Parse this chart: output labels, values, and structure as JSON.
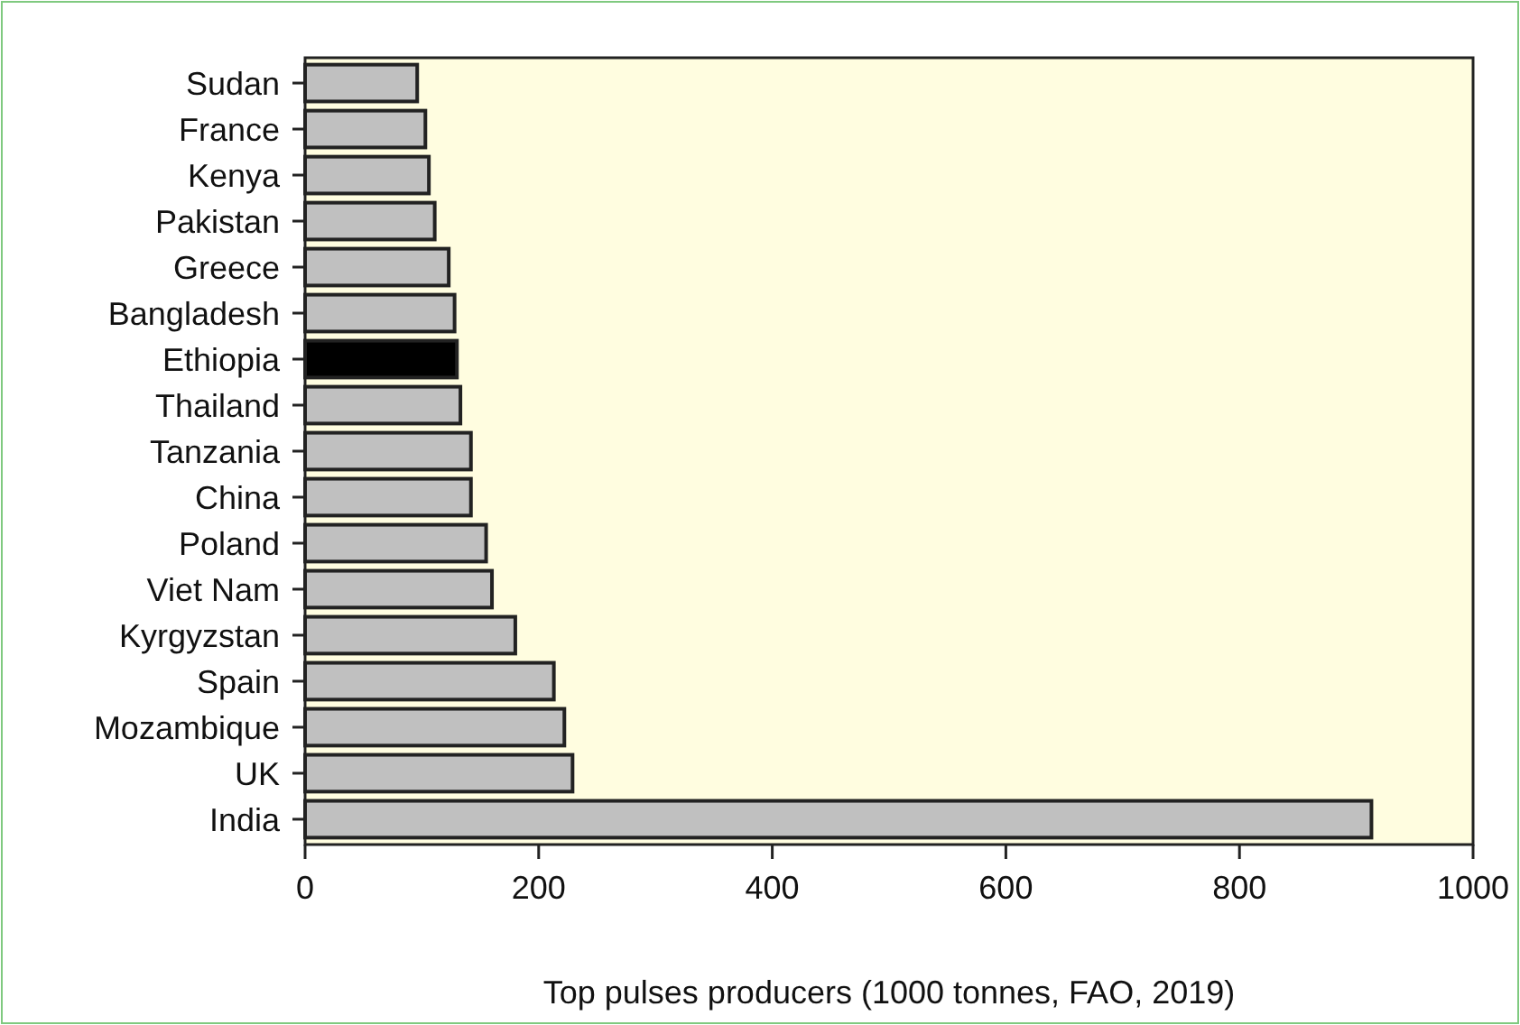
{
  "chart_data": {
    "type": "bar",
    "orientation": "horizontal",
    "xlabel": "Top pulses producers (1000 tonnes, FAO, 2019)",
    "categories": [
      "Sudan",
      "France",
      "Kenya",
      "Pakistan",
      "Greece",
      "Bangladesh",
      "Ethiopia",
      "Thailand",
      "Tanzania",
      "China",
      "Poland",
      "Viet Nam",
      "Kyrgyzstan",
      "Spain",
      "Mozambique",
      "UK",
      "India"
    ],
    "values": [
      96,
      103,
      106,
      111,
      123,
      128,
      130,
      133,
      142,
      142,
      155,
      160,
      180,
      213,
      222,
      229,
      913
    ],
    "colors": [
      "#c0c0c0",
      "#c0c0c0",
      "#c0c0c0",
      "#c0c0c0",
      "#c0c0c0",
      "#c0c0c0",
      "#000000",
      "#c0c0c0",
      "#c0c0c0",
      "#c0c0c0",
      "#c0c0c0",
      "#c0c0c0",
      "#c0c0c0",
      "#c0c0c0",
      "#c0c0c0",
      "#c0c0c0",
      "#c0c0c0"
    ],
    "xlim": [
      0,
      1000
    ],
    "xticks": [
      0,
      200,
      400,
      600,
      800,
      1000
    ],
    "grid": false
  }
}
